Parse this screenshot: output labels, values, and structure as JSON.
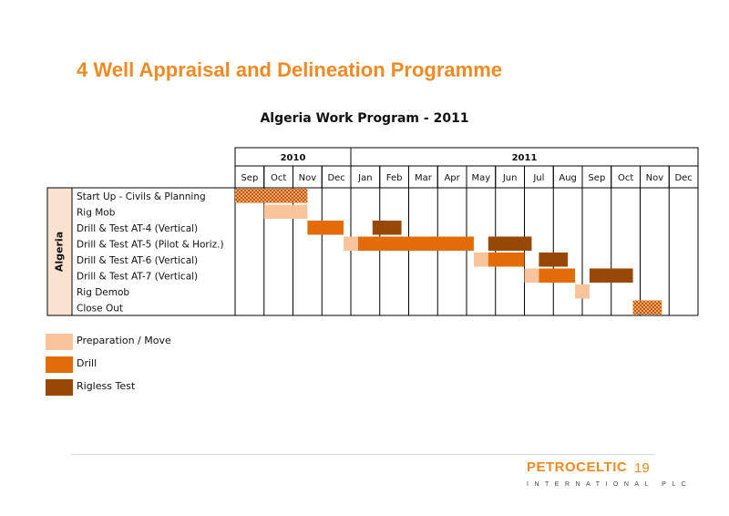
{
  "slide": {
    "title": "4 Well Appraisal and Delineation Programme",
    "page_number": "19"
  },
  "logo": {
    "name": "PETROCELTIC",
    "sub": "INTERNATIONAL PLC"
  },
  "colors": {
    "preparation": "#f9c49b",
    "drill": "#e36c0a",
    "rigless_test": "#974706",
    "hatched": "#e36c0a",
    "title_orange": "#f08a24"
  },
  "chart_data": {
    "type": "gantt",
    "title": "Algeria Work Program - 2011",
    "years": [
      {
        "label": "2010",
        "months": 4
      },
      {
        "label": "2011",
        "months": 12
      }
    ],
    "months": [
      "Sep",
      "Oct",
      "Nov",
      "Dec",
      "Jan",
      "Feb",
      "Mar",
      "Apr",
      "May",
      "Jun",
      "Jul",
      "Aug",
      "Sep",
      "Oct",
      "Nov",
      "Dec"
    ],
    "group_label": "Algeria",
    "tasks": [
      "Start Up - Civils & Planning",
      "Rig Mob",
      "Drill & Test AT-4 (Vertical)",
      "Drill & Test AT-5 (Pilot & Horiz.)",
      "Drill & Test AT-6 (Vertical)",
      "Drill & Test AT-7 (Vertical)",
      "Rig Demob",
      "Close Out"
    ],
    "bars": [
      {
        "task": 0,
        "start": 0,
        "end": 2.5,
        "type": "hatched"
      },
      {
        "task": 1,
        "start": 1,
        "end": 2.5,
        "type": "preparation"
      },
      {
        "task": 2,
        "start": 2.5,
        "end": 3.75,
        "type": "drill"
      },
      {
        "task": 2,
        "start": 4.75,
        "end": 5.75,
        "type": "rigless_test"
      },
      {
        "task": 3,
        "start": 3.75,
        "end": 4.25,
        "type": "preparation"
      },
      {
        "task": 3,
        "start": 4.25,
        "end": 8.25,
        "type": "drill"
      },
      {
        "task": 3,
        "start": 8.75,
        "end": 10.25,
        "type": "rigless_test"
      },
      {
        "task": 4,
        "start": 8.25,
        "end": 8.75,
        "type": "preparation"
      },
      {
        "task": 4,
        "start": 8.75,
        "end": 10.0,
        "type": "drill"
      },
      {
        "task": 4,
        "start": 10.5,
        "end": 11.5,
        "type": "rigless_test"
      },
      {
        "task": 5,
        "start": 10.0,
        "end": 10.5,
        "type": "preparation"
      },
      {
        "task": 5,
        "start": 10.5,
        "end": 11.75,
        "type": "drill"
      },
      {
        "task": 5,
        "start": 12.25,
        "end": 13.75,
        "type": "rigless_test"
      },
      {
        "task": 6,
        "start": 11.75,
        "end": 12.25,
        "type": "preparation"
      },
      {
        "task": 7,
        "start": 13.75,
        "end": 14.75,
        "type": "hatched"
      }
    ],
    "legend": [
      {
        "label": "Preparation / Move",
        "type": "preparation"
      },
      {
        "label": "Drill",
        "type": "drill"
      },
      {
        "label": "Rigless Test",
        "type": "rigless_test"
      }
    ]
  }
}
